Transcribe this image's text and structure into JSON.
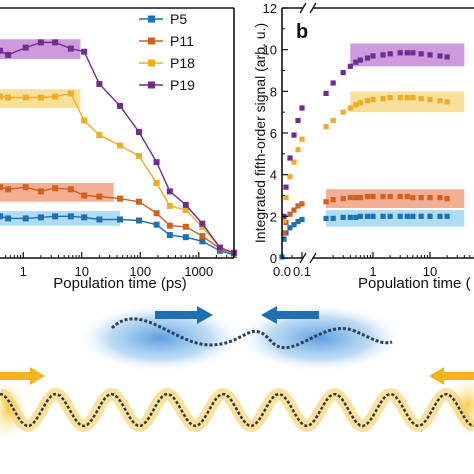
{
  "chart_data": [
    {
      "type": "line",
      "panel_label": "",
      "x_scale": "log",
      "xlim": [
        0.4,
        4000
      ],
      "ylim": [
        0,
        12
      ],
      "xlabel": "Population time (ps)",
      "ylabel": "",
      "x_ticks": [
        1,
        10,
        100,
        1000
      ],
      "x_tick_labels": [
        "1",
        "10",
        "100",
        "1000"
      ],
      "legend_position": "top-right",
      "series": [
        {
          "name": "P5",
          "color": "#1f6fb5",
          "x": [
            0.4,
            0.55,
            1.1,
            2.0,
            3.5,
            6.5,
            11,
            20,
            45,
            95,
            190,
            320,
            600,
            1150,
            2300,
            4000
          ],
          "y": [
            2.0,
            1.9,
            1.9,
            1.95,
            2.0,
            2.0,
            1.95,
            1.85,
            1.85,
            1.8,
            1.6,
            1.1,
            1.0,
            0.8,
            0.35,
            0.15
          ],
          "band": {
            "x0": 0.4,
            "x1": 45,
            "y0": 1.55,
            "y1": 2.25,
            "color": "#9fd6f2"
          }
        },
        {
          "name": "P11",
          "color": "#d2601f",
          "x": [
            0.4,
            0.55,
            1.1,
            2.0,
            3.5,
            6.5,
            11,
            20,
            45,
            95,
            190,
            320,
            600,
            1150,
            2300,
            4000
          ],
          "y": [
            3.4,
            3.3,
            3.4,
            3.2,
            3.35,
            3.3,
            3.0,
            2.95,
            2.85,
            2.7,
            2.15,
            1.55,
            1.5,
            1.05,
            0.45,
            0.2
          ],
          "band": {
            "x0": 0.4,
            "x1": 35,
            "y0": 2.7,
            "y1": 3.6,
            "color": "#f1a080"
          }
        },
        {
          "name": "P18",
          "color": "#f0ac27",
          "x": [
            0.4,
            0.55,
            1.1,
            2.0,
            3.5,
            6.5,
            11,
            20,
            45,
            95,
            190,
            320,
            600,
            1150,
            2300,
            4000
          ],
          "y": [
            7.75,
            7.7,
            7.7,
            7.7,
            7.75,
            7.9,
            6.6,
            5.9,
            5.4,
            4.9,
            3.6,
            2.5,
            2.3,
            1.5,
            0.5,
            0.2
          ],
          "band": {
            "x0": 0.4,
            "x1": 9.5,
            "y0": 7.2,
            "y1": 8.1,
            "color": "#f7da88"
          }
        },
        {
          "name": "P19",
          "color": "#6f2c91",
          "x": [
            0.4,
            0.55,
            1.1,
            2.0,
            3.5,
            6.5,
            11,
            20,
            45,
            95,
            190,
            320,
            600,
            1150,
            2300,
            4000
          ],
          "y": [
            9.95,
            9.75,
            10.1,
            10.35,
            10.35,
            10.05,
            9.9,
            8.35,
            7.3,
            6.05,
            4.6,
            3.2,
            2.55,
            1.65,
            0.5,
            0.25
          ],
          "band": {
            "x0": 0.4,
            "x1": 9.5,
            "y0": 9.55,
            "y1": 10.5,
            "color": "#c48ad5"
          }
        }
      ]
    },
    {
      "type": "scatter",
      "panel_label": "b",
      "x_scale": "linear-then-log (axis break)",
      "ylim": [
        0,
        12
      ],
      "ylabel": "Integrated fifth-order signal (arb. u.)",
      "xlabel": "Population time (",
      "y_ticks": [
        0,
        2,
        4,
        6,
        8,
        10,
        12
      ],
      "x_tick_labels": [
        "0.0",
        "0.1",
        "1",
        "10"
      ],
      "series": [
        {
          "name": "P5",
          "color": "#1f6fb5",
          "x": [
            0,
            0.01,
            0.02,
            0.04,
            0.06,
            0.08,
            0.1,
            0.15,
            0.2,
            0.3,
            0.4,
            0.5,
            0.6,
            0.8,
            1,
            1.5,
            2,
            3,
            4,
            5,
            7,
            10,
            15,
            20
          ],
          "y": [
            0.05,
            0.9,
            1.2,
            1.45,
            1.6,
            1.75,
            1.85,
            1.9,
            1.9,
            1.95,
            1.95,
            1.95,
            2.0,
            2.0,
            2.0,
            2.0,
            2.0,
            2.0,
            2.0,
            2.0,
            2.0,
            2.0,
            2.0,
            2.0
          ],
          "band": {
            "x0": 0.15,
            "x1": 40,
            "y0": 1.5,
            "y1": 2.3,
            "color": "#9fd6f2"
          }
        },
        {
          "name": "P11",
          "color": "#d2601f",
          "x": [
            0.01,
            0.02,
            0.04,
            0.06,
            0.08,
            0.1,
            0.15,
            0.2,
            0.3,
            0.4,
            0.5,
            0.6,
            0.8,
            1,
            1.5,
            2,
            3,
            4,
            5,
            7,
            10,
            15,
            20
          ],
          "y": [
            1.2,
            1.7,
            2.1,
            2.3,
            2.5,
            2.6,
            2.7,
            2.8,
            2.85,
            2.9,
            2.9,
            2.9,
            2.95,
            2.95,
            2.95,
            2.95,
            2.95,
            2.95,
            2.9,
            2.9,
            2.9,
            2.9,
            2.85
          ],
          "band": {
            "x0": 0.15,
            "x1": 40,
            "y0": 2.4,
            "y1": 3.3,
            "color": "#f1a080"
          }
        },
        {
          "name": "P18",
          "color": "#f0ac27",
          "x": [
            0.01,
            0.02,
            0.04,
            0.06,
            0.08,
            0.1,
            0.15,
            0.2,
            0.3,
            0.4,
            0.5,
            0.6,
            0.8,
            1,
            1.5,
            2,
            3,
            4,
            5,
            7,
            10,
            15,
            20
          ],
          "y": [
            1.8,
            2.9,
            3.9,
            4.6,
            5.2,
            5.7,
            6.3,
            6.6,
            7.0,
            7.2,
            7.35,
            7.45,
            7.55,
            7.6,
            7.65,
            7.7,
            7.7,
            7.7,
            7.7,
            7.65,
            7.6,
            7.55,
            7.5
          ],
          "band": {
            "x0": 0.4,
            "x1": 40,
            "y0": 7.0,
            "y1": 8.0,
            "color": "#f7da88"
          }
        },
        {
          "name": "P19",
          "color": "#6f2c91",
          "x": [
            0.01,
            0.02,
            0.04,
            0.06,
            0.08,
            0.1,
            0.15,
            0.2,
            0.3,
            0.4,
            0.5,
            0.6,
            0.8,
            1,
            1.5,
            2,
            3,
            4,
            5,
            7,
            10,
            15,
            20
          ],
          "y": [
            2.0,
            3.4,
            4.8,
            5.9,
            6.6,
            7.2,
            7.9,
            8.4,
            8.9,
            9.2,
            9.4,
            9.5,
            9.6,
            9.7,
            9.75,
            9.8,
            9.85,
            9.85,
            9.85,
            9.8,
            9.75,
            9.7,
            9.65
          ],
          "band": {
            "x0": 0.4,
            "x1": 40,
            "y0": 9.2,
            "y1": 10.3,
            "color": "#c48ad5"
          }
        }
      ]
    }
  ]
}
